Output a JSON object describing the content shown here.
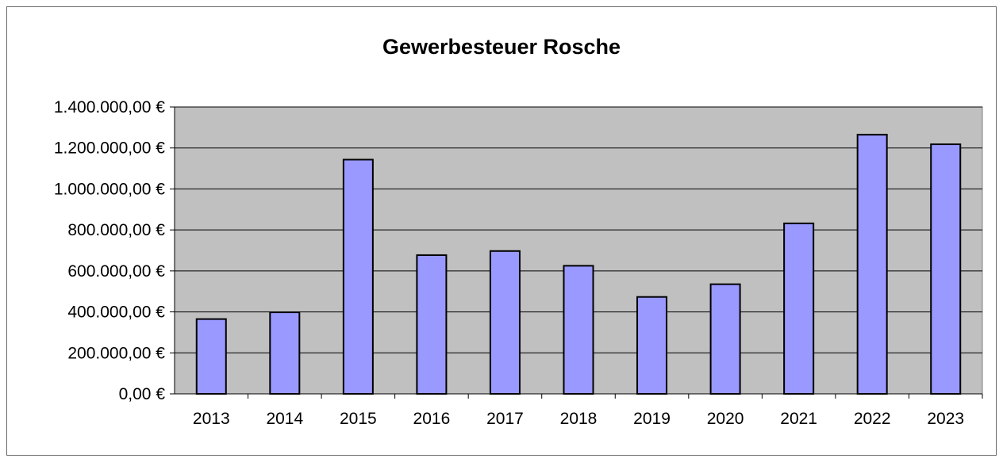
{
  "chart_data": {
    "type": "bar",
    "title": "Gewerbesteuer Rosche",
    "xlabel": "",
    "ylabel": "",
    "categories": [
      "2013",
      "2014",
      "2015",
      "2016",
      "2017",
      "2018",
      "2019",
      "2020",
      "2021",
      "2022",
      "2023"
    ],
    "series": [
      {
        "values": [
          365000,
          398000,
          1143000,
          677000,
          697000,
          625000,
          473000,
          535000,
          832000,
          1265000,
          1218000
        ],
        "color": "#9999ff"
      }
    ],
    "ylim": [
      0,
      1400000
    ],
    "yticks": [
      0,
      200000,
      400000,
      600000,
      800000,
      1000000,
      1200000,
      1400000
    ],
    "ytick_labels": [
      "0,00 €",
      "200.000,00 €",
      "400.000,00 €",
      "600.000,00 €",
      "800.000,00 €",
      "1.000.000,00 €",
      "1.200.000,00 €",
      "1.400.000,00 €"
    ],
    "grid": true,
    "legend": "none",
    "colors": {
      "plot_background": "#c0c0c0",
      "bar_fill": "#9999ff",
      "bar_stroke": "#000000",
      "gridline": "#000000"
    }
  }
}
